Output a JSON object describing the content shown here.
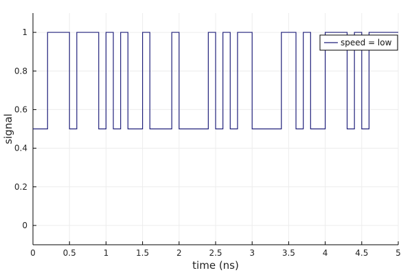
{
  "chart_data": {
    "type": "line",
    "step": true,
    "xlabel": "time (ns)",
    "ylabel": "signal",
    "xlim": [
      0,
      5
    ],
    "ylim": [
      -0.1,
      1.1
    ],
    "xticks": [
      0,
      0.5,
      1,
      1.5,
      2,
      2.5,
      3,
      3.5,
      4,
      4.5,
      5
    ],
    "xtick_labels": [
      "0",
      "0.5",
      "1",
      "1.5",
      "2",
      "2.5",
      "3",
      "3.5",
      "4",
      "4.5",
      "5"
    ],
    "yticks": [
      0,
      0.2,
      0.4,
      0.6,
      0.8,
      1
    ],
    "ytick_labels": [
      "0",
      "0.2",
      "0.4",
      "0.6",
      "0.8",
      "1"
    ],
    "grid": true,
    "legend_position": "top-right",
    "colors": {
      "series": "#1f1f7a",
      "grid": "#ececec",
      "axis": "#000000"
    },
    "series": [
      {
        "name": "speed = low",
        "x": [
          0,
          0.2,
          0.2,
          0.5,
          0.5,
          0.6,
          0.6,
          0.9,
          0.9,
          1.0,
          1.0,
          1.1,
          1.1,
          1.2,
          1.2,
          1.3,
          1.3,
          1.5,
          1.5,
          1.6,
          1.6,
          1.9,
          1.9,
          2.0,
          2.0,
          2.4,
          2.4,
          2.5,
          2.5,
          2.6,
          2.6,
          2.7,
          2.7,
          2.8,
          2.8,
          3.0,
          3.0,
          3.4,
          3.4,
          3.6,
          3.6,
          3.7,
          3.7,
          3.8,
          3.8,
          4.0,
          4.0,
          4.3,
          4.3,
          4.4,
          4.4,
          4.5,
          4.5,
          4.6,
          4.6,
          5.0
        ],
        "y": [
          0.5,
          0.5,
          1,
          1,
          0.5,
          0.5,
          1,
          1,
          0.5,
          0.5,
          1,
          1,
          0.5,
          0.5,
          1,
          1,
          0.5,
          0.5,
          1,
          1,
          0.5,
          0.5,
          1,
          1,
          0.5,
          0.5,
          1,
          1,
          0.5,
          0.5,
          1,
          1,
          0.5,
          0.5,
          1,
          1,
          0.5,
          0.5,
          1,
          1,
          0.5,
          0.5,
          1,
          1,
          0.5,
          0.5,
          1,
          1,
          0.5,
          0.5,
          1,
          1,
          0.5,
          0.5,
          1,
          1
        ]
      }
    ]
  }
}
